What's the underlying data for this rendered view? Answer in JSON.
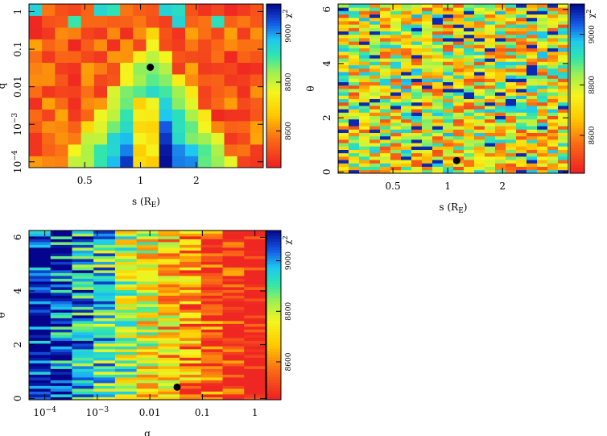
{
  "chart_data": [
    {
      "type": "heatmap",
      "id": "s_q",
      "xlabel": "s (R",
      "xlabel_sub": "E",
      "xlabel_close": ")",
      "ylabel": "q",
      "xscale": "log",
      "yscale": "log",
      "xlim": [
        0.25,
        4.6
      ],
      "ylim": [
        7e-05,
        1.6
      ],
      "xticks": [
        {
          "v": 0.5,
          "label": "0.5"
        },
        {
          "v": 1,
          "label": "1"
        },
        {
          "v": 2,
          "label": "2"
        }
      ],
      "yticks": [
        {
          "v": 1,
          "label": "1"
        },
        {
          "v": 0.1,
          "label": "0.1"
        },
        {
          "v": 0.01,
          "label": "0.01"
        },
        {
          "v": 0.001,
          "label": "10",
          "sup": "−3"
        },
        {
          "v": 0.0001,
          "label": "10",
          "sup": "−4"
        }
      ],
      "grid": {
        "nx": 18,
        "ny": 14,
        "description_values": "chi-square map: minimum (red) in a V-shaped valley centred near s≈1.1, q≈0.03; rising (blue) toward small q"
      },
      "best_fit": {
        "x": 1.13,
        "y": 0.033
      },
      "colorbar": {
        "label": "χ",
        "label_sup": "2",
        "range": [
          8450,
          9120
        ],
        "ticks": [
          {
            "v": 9000,
            "label": "9000"
          },
          {
            "v": 8800,
            "label": "8800"
          },
          {
            "v": 8600,
            "label": "8600"
          }
        ]
      }
    },
    {
      "type": "heatmap",
      "id": "s_theta",
      "xlabel": "s (R",
      "xlabel_sub": "E",
      "xlabel_close": ")",
      "ylabel": "θ",
      "xscale": "log",
      "yscale": "linear",
      "xlim": [
        0.25,
        4.6
      ],
      "ylim": [
        -0.05,
        6.2
      ],
      "xticks": [
        {
          "v": 0.5,
          "label": "0.5"
        },
        {
          "v": 1,
          "label": "1"
        },
        {
          "v": 2,
          "label": "2"
        }
      ],
      "yticks": [
        {
          "v": 0,
          "label": "0"
        },
        {
          "v": 2,
          "label": "2"
        },
        {
          "v": 4,
          "label": "4"
        },
        {
          "v": 6,
          "label": "6"
        }
      ],
      "grid": {
        "nx": 22,
        "ny": 50,
        "description_values": "noisy chi-square map in (s, θ); minimum near s≈1.1, θ≈0.4"
      },
      "best_fit": {
        "x": 1.12,
        "y": 0.42
      },
      "colorbar": {
        "label": "χ",
        "label_sup": "2",
        "range": [
          8450,
          9120
        ],
        "ticks": [
          {
            "v": 9000,
            "label": "9000"
          },
          {
            "v": 8800,
            "label": "8800"
          },
          {
            "v": 8600,
            "label": "8600"
          }
        ]
      }
    },
    {
      "type": "heatmap",
      "id": "q_theta",
      "xlabel": "q",
      "ylabel": "θ",
      "xscale": "log",
      "yscale": "linear",
      "xlim": [
        5e-05,
        1.6
      ],
      "ylim": [
        -0.05,
        6.25
      ],
      "xticks": [
        {
          "v": 0.0001,
          "label": "10",
          "sup": "−4"
        },
        {
          "v": 0.001,
          "label": "10",
          "sup": "−3"
        },
        {
          "v": 0.01,
          "label": "0.01"
        },
        {
          "v": 0.1,
          "label": "0.1"
        },
        {
          "v": 1,
          "label": "1"
        }
      ],
      "yticks": [
        {
          "v": 0,
          "label": "0"
        },
        {
          "v": 2,
          "label": "2"
        },
        {
          "v": 4,
          "label": "4"
        },
        {
          "v": 6,
          "label": "6"
        }
      ],
      "grid": {
        "nx": 11,
        "ny": 60,
        "description_values": "chi-square map in (q, θ): high (blue) at small q, low (red) for q ≳ 0.01; minimum near q≈0.033, θ≈0.4"
      },
      "best_fit": {
        "x": 0.033,
        "y": 0.42
      },
      "colorbar": {
        "label": "χ",
        "label_sup": "2",
        "range": [
          8450,
          9120
        ],
        "ticks": [
          {
            "v": 9000,
            "label": "9000"
          },
          {
            "v": 8800,
            "label": "8800"
          },
          {
            "v": 8600,
            "label": "8600"
          }
        ]
      }
    }
  ]
}
